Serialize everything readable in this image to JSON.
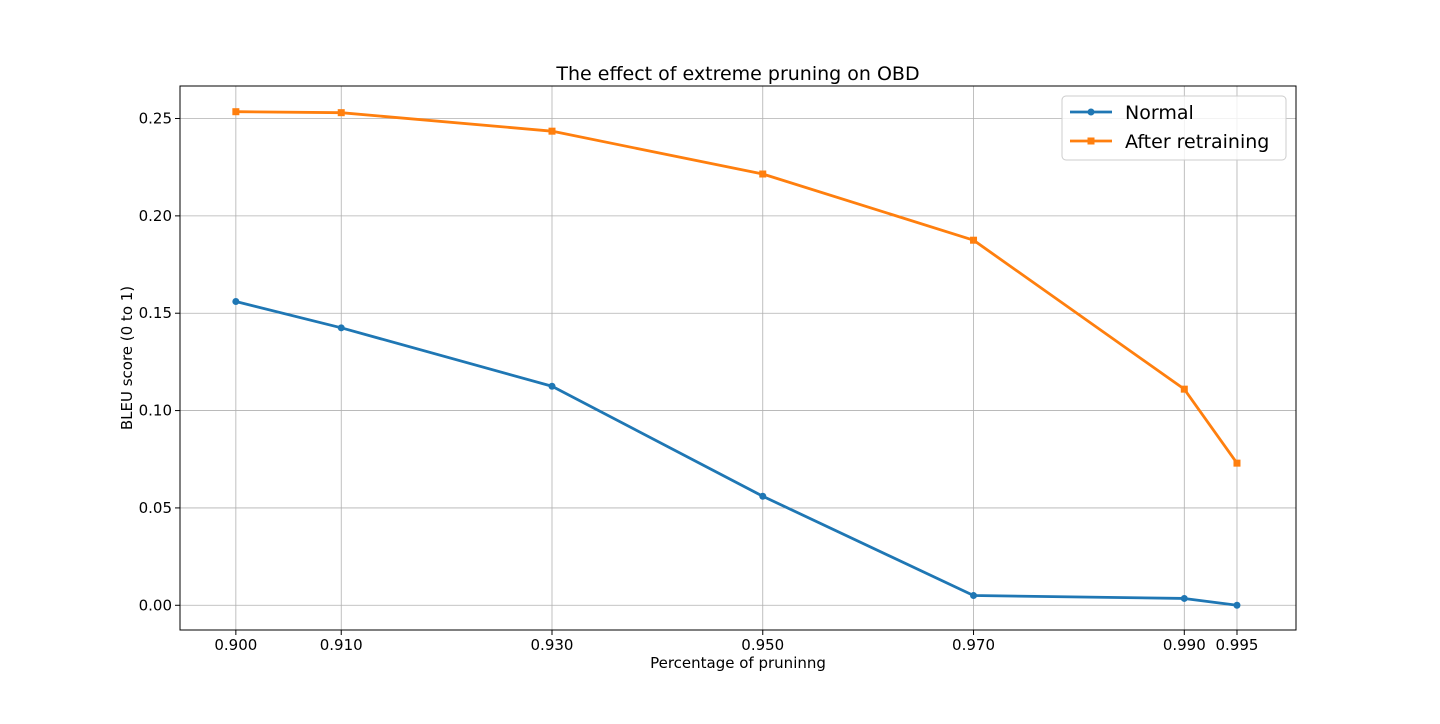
{
  "chart_data": {
    "type": "line",
    "title": "The effect of extreme pruning  on OBD",
    "xlabel": "Percentage of pruninng",
    "ylabel": "BLEU score (0 to 1)",
    "x": [
      0.9,
      0.91,
      0.93,
      0.95,
      0.97,
      0.99,
      0.995
    ],
    "xtick_labels": [
      "0.900",
      "0.910",
      "0.930",
      "0.950",
      "0.970",
      "0.990",
      "0.995"
    ],
    "yticks": [
      0.0,
      0.05,
      0.1,
      0.15,
      0.2,
      0.25
    ],
    "ytick_labels": [
      "0.00",
      "0.05",
      "0.10",
      "0.15",
      "0.20",
      "0.25"
    ],
    "xlim": [
      0.8947,
      1.0006
    ],
    "ylim": [
      -0.0127,
      0.2667
    ],
    "grid": true,
    "legend_position": "top-right",
    "series": [
      {
        "name": "Normal",
        "color": "#1f77b4",
        "marker": "circle",
        "values": [
          0.156,
          0.1425,
          0.1125,
          0.056,
          0.005,
          0.0035,
          0.0
        ]
      },
      {
        "name": "After retraining",
        "color": "#ff7f0e",
        "marker": "square",
        "values": [
          0.2535,
          0.253,
          0.2435,
          0.2215,
          0.1875,
          0.111,
          0.073
        ]
      }
    ]
  }
}
